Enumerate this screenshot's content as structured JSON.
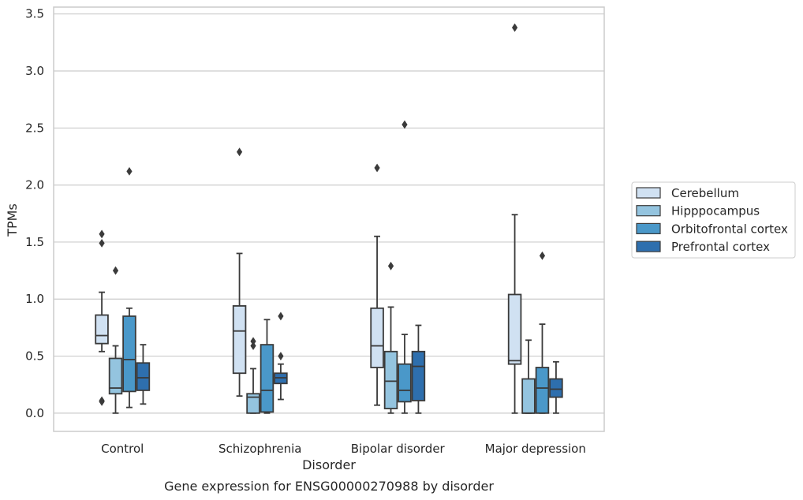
{
  "chart_data": {
    "type": "box",
    "caption": "Gene expression for ENSG00000270988 by disorder",
    "xlabel": "Disorder",
    "ylabel": "TPMs",
    "ylim": [
      -0.16,
      3.56
    ],
    "yticks": [
      "0.0",
      "0.5",
      "1.0",
      "1.5",
      "2.0",
      "2.5",
      "3.0",
      "3.5"
    ],
    "ytick_values": [
      0.0,
      0.5,
      1.0,
      1.5,
      2.0,
      2.5,
      3.0,
      3.5
    ],
    "grid": "horizontal",
    "legend_position": "right",
    "categories": [
      "Control",
      "Schizophrenia",
      "Bipolar disorder",
      "Major depression"
    ],
    "series": [
      {
        "name": "Cerebellum",
        "color": "#d0e1f2",
        "boxes": [
          {
            "whislo": 0.54,
            "q1": 0.61,
            "med": 0.68,
            "q3": 0.86,
            "whishi": 1.06,
            "fliers": [
              0.1,
              0.11,
              1.49,
              1.57
            ]
          },
          {
            "whislo": 0.15,
            "q1": 0.35,
            "med": 0.72,
            "q3": 0.94,
            "whishi": 1.4,
            "fliers": [
              2.29
            ]
          },
          {
            "whislo": 0.07,
            "q1": 0.4,
            "med": 0.59,
            "q3": 0.92,
            "whishi": 1.55,
            "fliers": [
              2.15
            ]
          },
          {
            "whislo": 0.0,
            "q1": 0.43,
            "med": 0.46,
            "q3": 1.04,
            "whishi": 1.74,
            "fliers": [
              3.38
            ]
          }
        ]
      },
      {
        "name": "Hipppocampus",
        "color": "#94c4df",
        "boxes": [
          {
            "whislo": 0.0,
            "q1": 0.17,
            "med": 0.22,
            "q3": 0.48,
            "whishi": 0.59,
            "fliers": [
              1.25
            ]
          },
          {
            "whislo": 0.0,
            "q1": 0.0,
            "med": 0.14,
            "q3": 0.17,
            "whishi": 0.39,
            "fliers": [
              0.59,
              0.63
            ]
          },
          {
            "whislo": 0.0,
            "q1": 0.04,
            "med": 0.28,
            "q3": 0.54,
            "whishi": 0.93,
            "fliers": [
              1.29
            ]
          },
          {
            "whislo": 0.0,
            "q1": 0.0,
            "med": 0.0,
            "q3": 0.3,
            "whishi": 0.64,
            "fliers": []
          }
        ]
      },
      {
        "name": "Orbitofrontal cortex",
        "color": "#4a98c9",
        "boxes": [
          {
            "whislo": 0.05,
            "q1": 0.19,
            "med": 0.47,
            "q3": 0.85,
            "whishi": 0.92,
            "fliers": [
              2.12
            ]
          },
          {
            "whislo": 0.0,
            "q1": 0.01,
            "med": 0.2,
            "q3": 0.6,
            "whishi": 0.82,
            "fliers": []
          },
          {
            "whislo": 0.0,
            "q1": 0.1,
            "med": 0.2,
            "q3": 0.43,
            "whishi": 0.69,
            "fliers": [
              2.53
            ]
          },
          {
            "whislo": 0.0,
            "q1": 0.0,
            "med": 0.22,
            "q3": 0.4,
            "whishi": 0.78,
            "fliers": [
              1.38
            ]
          }
        ]
      },
      {
        "name": "Prefrontal cortex",
        "color": "#2e6fae",
        "boxes": [
          {
            "whislo": 0.08,
            "q1": 0.2,
            "med": 0.31,
            "q3": 0.44,
            "whishi": 0.6,
            "fliers": []
          },
          {
            "whislo": 0.12,
            "q1": 0.26,
            "med": 0.31,
            "q3": 0.35,
            "whishi": 0.43,
            "fliers": [
              0.5,
              0.85
            ]
          },
          {
            "whislo": 0.0,
            "q1": 0.11,
            "med": 0.41,
            "q3": 0.54,
            "whishi": 0.77,
            "fliers": []
          },
          {
            "whislo": 0.0,
            "q1": 0.14,
            "med": 0.21,
            "q3": 0.3,
            "whishi": 0.45,
            "fliers": []
          }
        ]
      }
    ]
  }
}
